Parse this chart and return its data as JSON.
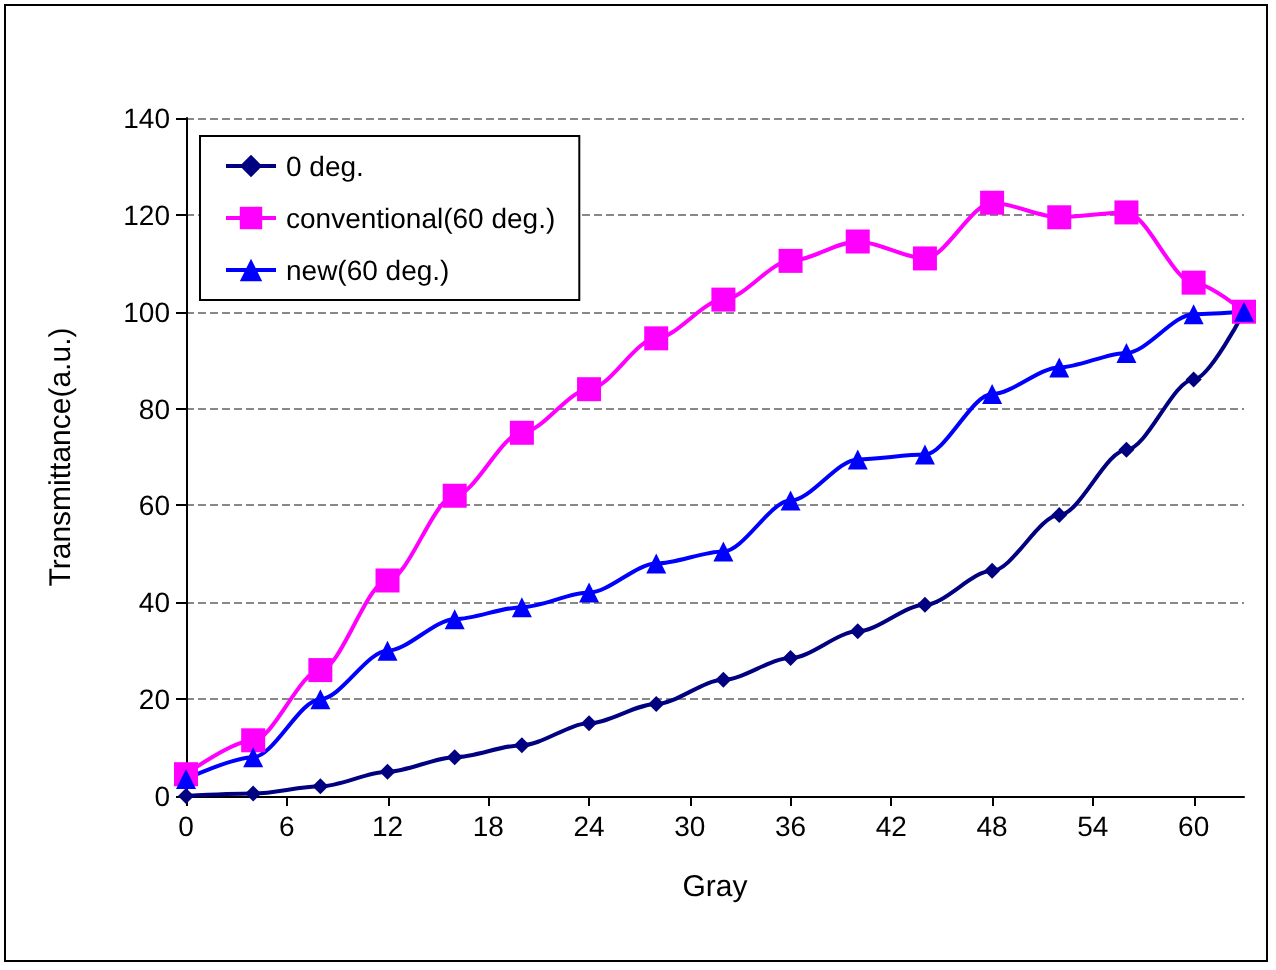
{
  "chart_data": {
    "type": "line",
    "xlabel": "Gray",
    "ylabel": "Transmittance(a.u.)",
    "x": [
      0,
      4,
      8,
      12,
      16,
      20,
      24,
      28,
      32,
      36,
      40,
      44,
      48,
      52,
      56,
      60,
      63
    ],
    "xlim": [
      0,
      63
    ],
    "xticks": [
      0,
      6,
      12,
      18,
      24,
      30,
      36,
      42,
      48,
      54,
      60
    ],
    "ylim": [
      0,
      140
    ],
    "yticks": [
      0,
      20,
      40,
      60,
      80,
      100,
      120,
      140
    ],
    "grid": "y",
    "legend": "top left",
    "line_style": "solid",
    "series": [
      {
        "name": "0 deg.",
        "color": "#000080",
        "marker": "diamond",
        "values": [
          0,
          0.5,
          2,
          5,
          8,
          10.5,
          15,
          19,
          24,
          28.5,
          34,
          39.5,
          46.5,
          58,
          71.5,
          86,
          100
        ]
      },
      {
        "name": "conventional(60 deg.)",
        "color": "#ff00ff",
        "marker": "square",
        "values": [
          4.5,
          11.5,
          26,
          44.5,
          62,
          75,
          84,
          94.5,
          102.5,
          110.5,
          114.5,
          111,
          122.5,
          119.5,
          120.5,
          106,
          100
        ]
      },
      {
        "name": "new(60 deg.)",
        "color": "#0000ff",
        "marker": "triangle",
        "values": [
          3.5,
          8,
          20,
          30,
          36.5,
          39,
          42,
          48,
          50.5,
          61,
          69.5,
          70.5,
          83,
          88.5,
          91.5,
          99.5,
          100
        ]
      }
    ]
  }
}
